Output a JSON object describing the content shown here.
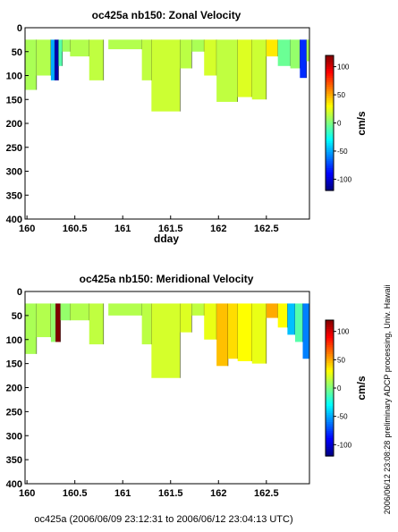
{
  "footer": "oc425a (2006/06/09 23:12:31 to 2006/06/12 23:04:13 UTC)",
  "side_note": "preliminary ADCP processing,   Univ. Hawaii",
  "timestamp": "2006/06/12 23:08:28",
  "colormap": [
    "#000080",
    "#0000ff",
    "#0080ff",
    "#00ffff",
    "#80ff80",
    "#ffff00",
    "#ff8000",
    "#ff0000",
    "#800000"
  ],
  "chart_data": [
    {
      "type": "heatmap",
      "title": "oc425a nb150: Zonal Velocity",
      "xlabel": "dday",
      "ylabel": "",
      "x_ticks": [
        160,
        160.5,
        161,
        161.5,
        162,
        162.5
      ],
      "y_ticks": [
        0,
        50,
        100,
        150,
        200,
        250,
        300,
        350,
        400
      ],
      "xlim": [
        159.98,
        162.95
      ],
      "ylim": [
        400,
        0
      ],
      "colorbar": {
        "label": "cm/s",
        "ticks": [
          100,
          50,
          0,
          -50,
          -100
        ],
        "range": [
          -120,
          120
        ]
      },
      "grid": false,
      "columns": [
        {
          "x0": 159.98,
          "x1": 160.1,
          "zmin": 25,
          "zmax": 130,
          "value": 10
        },
        {
          "x0": 160.1,
          "x1": 160.25,
          "zmin": 25,
          "zmax": 100,
          "value": 12
        },
        {
          "x0": 160.25,
          "x1": 160.29,
          "zmin": 25,
          "zmax": 110,
          "value": -50
        },
        {
          "x0": 160.29,
          "x1": 160.33,
          "zmin": 25,
          "zmax": 110,
          "value": -110
        },
        {
          "x0": 160.33,
          "x1": 160.37,
          "zmin": 25,
          "zmax": 80,
          "value": -10
        },
        {
          "x0": 160.37,
          "x1": 160.45,
          "zmin": 25,
          "zmax": 50,
          "value": 8
        },
        {
          "x0": 160.45,
          "x1": 160.65,
          "zmin": 25,
          "zmax": 60,
          "value": 12
        },
        {
          "x0": 160.65,
          "x1": 160.8,
          "zmin": 25,
          "zmax": 110,
          "value": 15
        },
        {
          "x0": 160.85,
          "x1": 161.2,
          "zmin": 25,
          "zmax": 45,
          "value": 12
        },
        {
          "x0": 161.2,
          "x1": 161.3,
          "zmin": 25,
          "zmax": 110,
          "value": 15
        },
        {
          "x0": 161.3,
          "x1": 161.6,
          "zmin": 25,
          "zmax": 175,
          "value": 18
        },
        {
          "x0": 161.6,
          "x1": 161.72,
          "zmin": 25,
          "zmax": 85,
          "value": 14
        },
        {
          "x0": 161.72,
          "x1": 161.85,
          "zmin": 25,
          "zmax": 50,
          "value": 10
        },
        {
          "x0": 161.85,
          "x1": 161.98,
          "zmin": 25,
          "zmax": 100,
          "value": 20
        },
        {
          "x0": 161.98,
          "x1": 162.2,
          "zmin": 25,
          "zmax": 155,
          "value": 15
        },
        {
          "x0": 162.2,
          "x1": 162.35,
          "zmin": 25,
          "zmax": 145,
          "value": 22
        },
        {
          "x0": 162.35,
          "x1": 162.5,
          "zmin": 25,
          "zmax": 150,
          "value": 18
        },
        {
          "x0": 162.5,
          "x1": 162.62,
          "zmin": 25,
          "zmax": 60,
          "value": 35
        },
        {
          "x0": 162.62,
          "x1": 162.75,
          "zmin": 25,
          "zmax": 80,
          "value": -5
        },
        {
          "x0": 162.75,
          "x1": 162.85,
          "zmin": 25,
          "zmax": 85,
          "value": 5
        },
        {
          "x0": 162.85,
          "x1": 162.92,
          "zmin": 25,
          "zmax": 105,
          "value": -80
        },
        {
          "x0": 162.92,
          "x1": 162.95,
          "zmin": 25,
          "zmax": 70,
          "value": 10
        }
      ]
    },
    {
      "type": "heatmap",
      "title": "oc425a nb150: Meridional Velocity",
      "xlabel": "",
      "ylabel": "",
      "x_ticks": [
        160,
        160.5,
        161,
        161.5,
        162,
        162.5
      ],
      "y_ticks": [
        0,
        50,
        100,
        150,
        200,
        250,
        300,
        350,
        400
      ],
      "xlim": [
        159.98,
        162.95
      ],
      "ylim": [
        400,
        0
      ],
      "colorbar": {
        "label": "cm/s",
        "ticks": [
          100,
          50,
          0,
          -50,
          -100
        ],
        "range": [
          -120,
          120
        ]
      },
      "grid": false,
      "columns": [
        {
          "x0": 159.98,
          "x1": 160.1,
          "zmin": 25,
          "zmax": 130,
          "value": 10
        },
        {
          "x0": 160.1,
          "x1": 160.25,
          "zmin": 25,
          "zmax": 95,
          "value": 12
        },
        {
          "x0": 160.25,
          "x1": 160.3,
          "zmin": 25,
          "zmax": 105,
          "value": 5
        },
        {
          "x0": 160.3,
          "x1": 160.35,
          "zmin": 25,
          "zmax": 105,
          "value": 120
        },
        {
          "x0": 160.35,
          "x1": 160.45,
          "zmin": 25,
          "zmax": 60,
          "value": 5
        },
        {
          "x0": 160.45,
          "x1": 160.65,
          "zmin": 25,
          "zmax": 60,
          "value": 12
        },
        {
          "x0": 160.65,
          "x1": 160.8,
          "zmin": 25,
          "zmax": 110,
          "value": 15
        },
        {
          "x0": 160.85,
          "x1": 161.2,
          "zmin": 25,
          "zmax": 50,
          "value": 12
        },
        {
          "x0": 161.2,
          "x1": 161.3,
          "zmin": 25,
          "zmax": 110,
          "value": 14
        },
        {
          "x0": 161.3,
          "x1": 161.6,
          "zmin": 25,
          "zmax": 180,
          "value": 20
        },
        {
          "x0": 161.6,
          "x1": 161.72,
          "zmin": 25,
          "zmax": 85,
          "value": 22
        },
        {
          "x0": 161.72,
          "x1": 161.85,
          "zmin": 25,
          "zmax": 50,
          "value": 15
        },
        {
          "x0": 161.85,
          "x1": 161.98,
          "zmin": 25,
          "zmax": 100,
          "value": 25
        },
        {
          "x0": 161.98,
          "x1": 162.1,
          "zmin": 25,
          "zmax": 155,
          "value": 45
        },
        {
          "x0": 162.1,
          "x1": 162.2,
          "zmin": 25,
          "zmax": 140,
          "value": 38
        },
        {
          "x0": 162.2,
          "x1": 162.35,
          "zmin": 25,
          "zmax": 145,
          "value": 30
        },
        {
          "x0": 162.35,
          "x1": 162.5,
          "zmin": 25,
          "zmax": 150,
          "value": 25
        },
        {
          "x0": 162.5,
          "x1": 162.62,
          "zmin": 25,
          "zmax": 55,
          "value": 50
        },
        {
          "x0": 162.62,
          "x1": 162.72,
          "zmin": 25,
          "zmax": 75,
          "value": 30
        },
        {
          "x0": 162.72,
          "x1": 162.8,
          "zmin": 25,
          "zmax": 90,
          "value": -45
        },
        {
          "x0": 162.8,
          "x1": 162.88,
          "zmin": 25,
          "zmax": 105,
          "value": -10
        },
        {
          "x0": 162.88,
          "x1": 162.95,
          "zmin": 25,
          "zmax": 140,
          "value": -60
        }
      ]
    }
  ]
}
